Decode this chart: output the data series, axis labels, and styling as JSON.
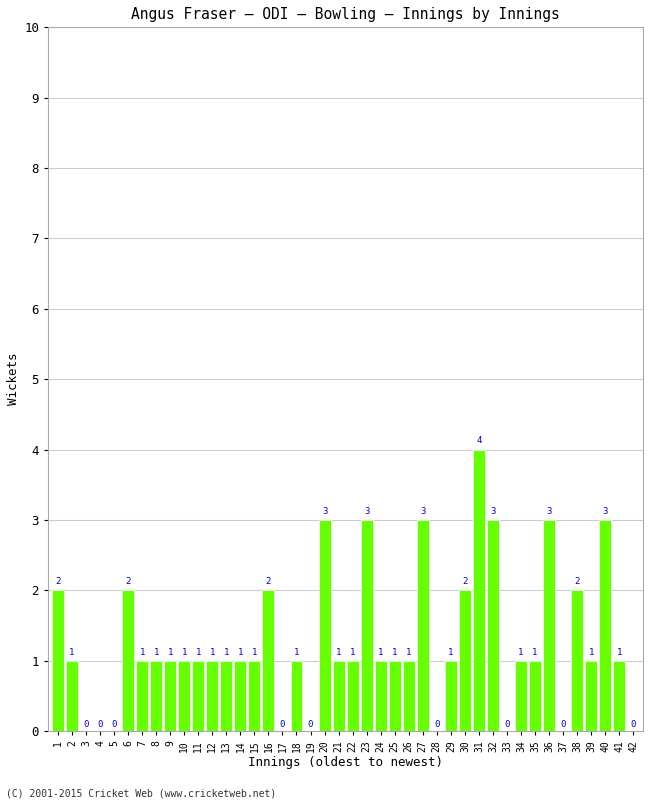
{
  "title": "Angus Fraser – ODI – Bowling – Innings by Innings",
  "xlabel": "Innings (oldest to newest)",
  "ylabel": "Wickets",
  "footer": "(C) 2001-2015 Cricket Web (www.cricketweb.net)",
  "bar_color": "#66ff00",
  "bar_edge_color": "#ffffff",
  "label_color": "#0000cc",
  "background_color": "#ffffff",
  "grid_color": "#cccccc",
  "ylim": [
    0,
    10
  ],
  "yticks": [
    0,
    1,
    2,
    3,
    4,
    5,
    6,
    7,
    8,
    9,
    10
  ],
  "innings": [
    1,
    2,
    3,
    4,
    5,
    6,
    7,
    8,
    9,
    10,
    11,
    12,
    13,
    14,
    15,
    16,
    17,
    18,
    19,
    20,
    21,
    22,
    23,
    24,
    25,
    26,
    27,
    28,
    29,
    30,
    31,
    32,
    33,
    34,
    35,
    36,
    37,
    38,
    39,
    40,
    41,
    42
  ],
  "wickets": [
    2,
    1,
    0,
    0,
    0,
    2,
    1,
    1,
    1,
    1,
    1,
    1,
    1,
    1,
    1,
    2,
    0,
    1,
    0,
    3,
    1,
    1,
    3,
    1,
    1,
    1,
    3,
    0,
    1,
    2,
    4,
    3,
    0,
    1,
    1,
    3,
    0,
    2,
    1,
    3,
    1,
    0
  ]
}
